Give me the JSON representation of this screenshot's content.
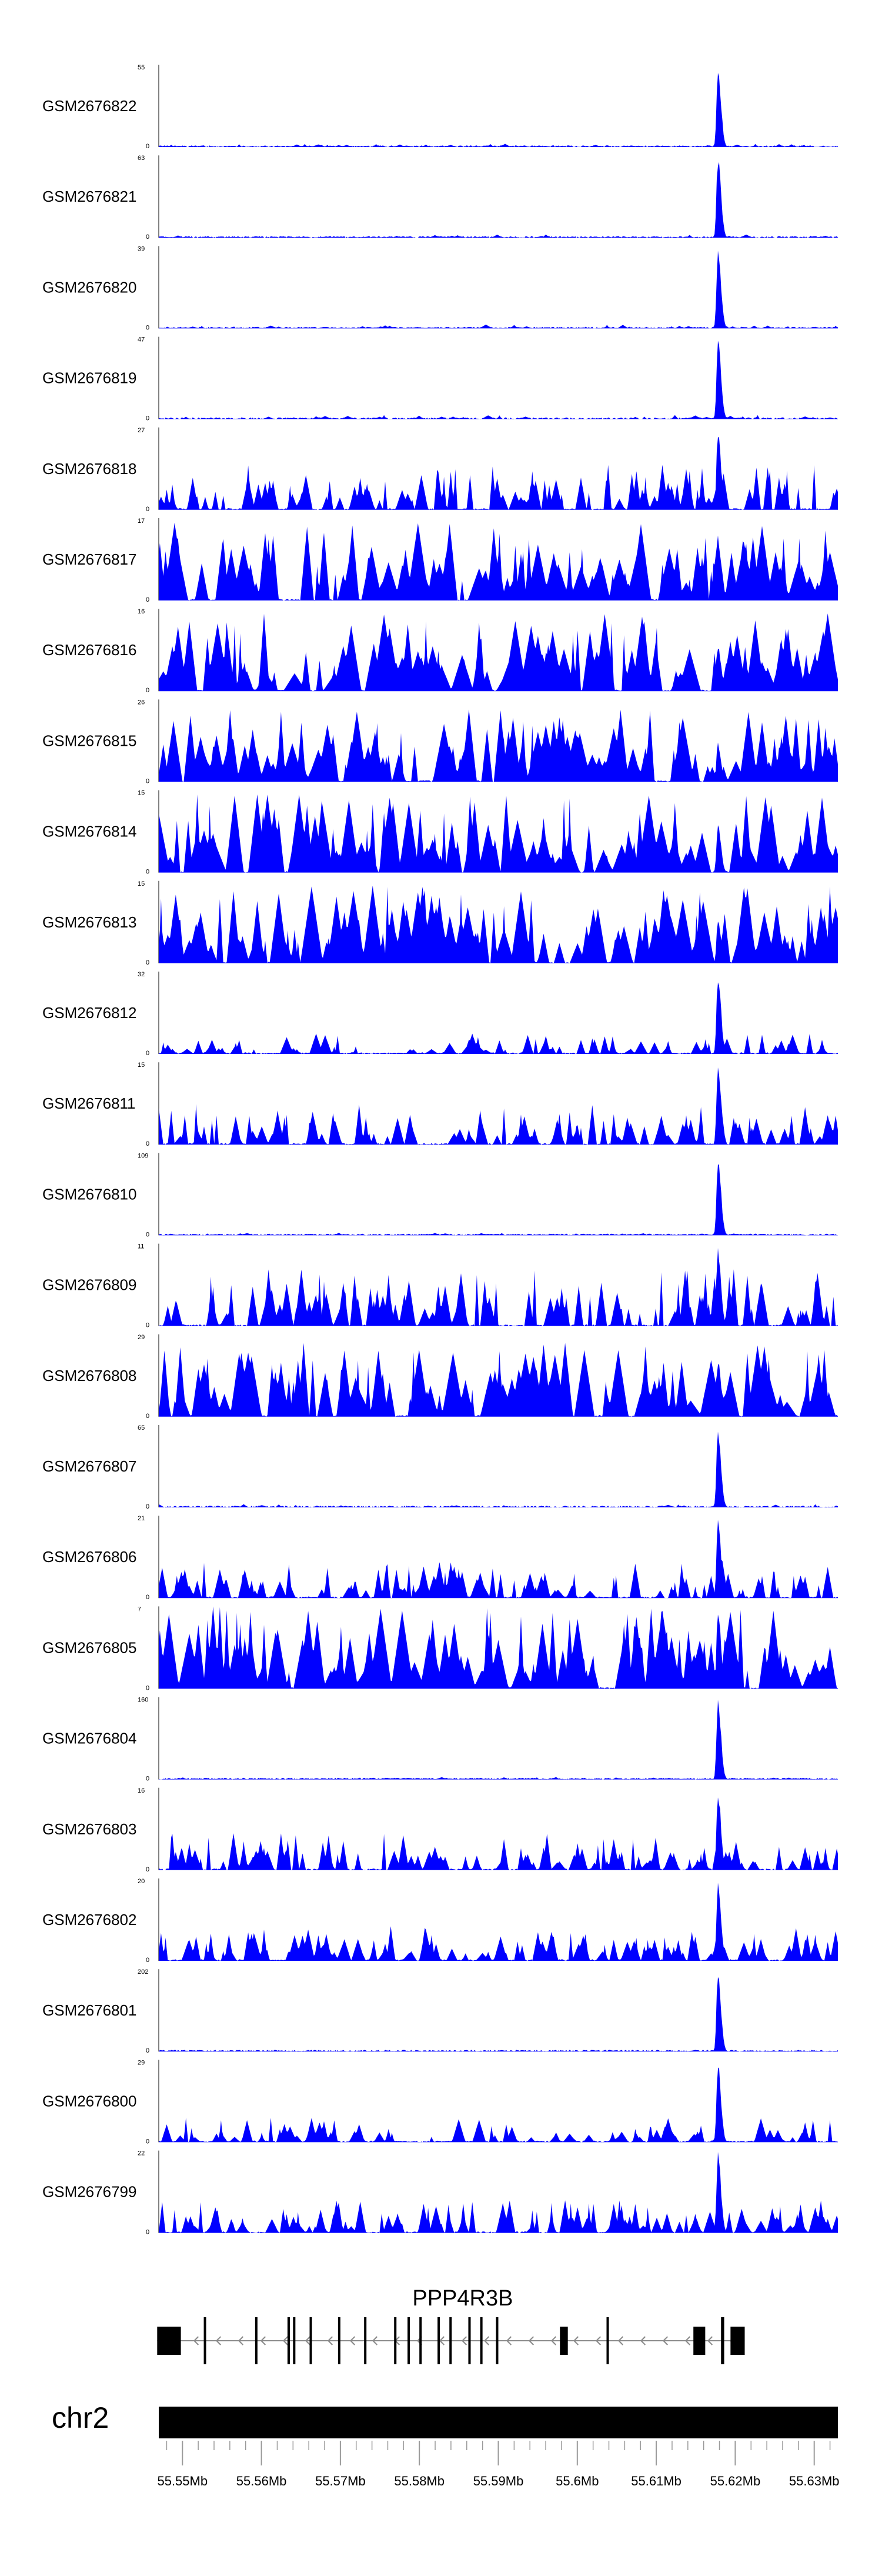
{
  "chart_data": {
    "type": "area",
    "title": "",
    "fill_color": "#0000ff",
    "locus": {
      "chromosome": "chr2",
      "x_range_mb": [
        55.547,
        55.633
      ],
      "ticks_mb": [
        55.55,
        55.56,
        55.57,
        55.58,
        55.59,
        55.6,
        55.61,
        55.62,
        55.63
      ],
      "tick_labels": [
        "55.55Mb",
        "55.56Mb",
        "55.57Mb",
        "55.58Mb",
        "55.59Mb",
        "55.6Mb",
        "55.61Mb",
        "55.62Mb",
        "55.63Mb"
      ]
    },
    "gene": {
      "name": "PPP4R3B",
      "strand": "-",
      "start_mb": 55.5468,
      "end_mb": 55.6212,
      "exons_mb": [
        [
          55.5468,
          55.5498
        ],
        [
          55.5527,
          55.553
        ],
        [
          55.5592,
          55.5595
        ],
        [
          55.5633,
          55.5636
        ],
        [
          55.564,
          55.5643
        ],
        [
          55.5661,
          55.5664
        ],
        [
          55.5697,
          55.57
        ],
        [
          55.573,
          55.5733
        ],
        [
          55.5768,
          55.5771
        ],
        [
          55.5785,
          55.5788
        ],
        [
          55.58,
          55.5803
        ],
        [
          55.5823,
          55.5826
        ],
        [
          55.5838,
          55.5841
        ],
        [
          55.5862,
          55.5865
        ],
        [
          55.5877,
          55.588
        ],
        [
          55.5897,
          55.59
        ],
        [
          55.5978,
          55.5988
        ],
        [
          55.6037,
          55.604
        ],
        [
          55.6147,
          55.6162
        ],
        [
          55.6182,
          55.6186
        ],
        [
          55.6194,
          55.6212
        ]
      ]
    },
    "peak_center_mb": 55.6178,
    "series": [
      {
        "name": "GSM2676822",
        "ymax": 55,
        "ymin": 0,
        "profile": "peak-sparse",
        "peak_rel": 1.0,
        "bg_rel": 0.04,
        "seed": 22
      },
      {
        "name": "GSM2676821",
        "ymax": 63,
        "ymin": 0,
        "profile": "peak-sparse",
        "peak_rel": 1.0,
        "bg_rel": 0.04,
        "seed": 21
      },
      {
        "name": "GSM2676820",
        "ymax": 39,
        "ymin": 0,
        "profile": "peak-sparse",
        "peak_rel": 1.0,
        "bg_rel": 0.05,
        "seed": 20
      },
      {
        "name": "GSM2676819",
        "ymax": 47,
        "ymin": 0,
        "profile": "peak-sparse",
        "peak_rel": 1.0,
        "bg_rel": 0.05,
        "seed": 19
      },
      {
        "name": "GSM2676818",
        "ymax": 27,
        "ymin": 0,
        "profile": "noisy",
        "peak_rel": 1.0,
        "bg_rel": 0.55,
        "seed": 18
      },
      {
        "name": "GSM2676817",
        "ymax": 17,
        "ymin": 0,
        "profile": "dense",
        "peak_rel": 0.55,
        "bg_rel": 0.95,
        "seed": 17
      },
      {
        "name": "GSM2676816",
        "ymax": 16,
        "ymin": 0,
        "profile": "dense",
        "peak_rel": 0.6,
        "bg_rel": 0.95,
        "seed": 16
      },
      {
        "name": "GSM2676815",
        "ymax": 26,
        "ymin": 0,
        "profile": "dense",
        "peak_rel": 0.5,
        "bg_rel": 0.9,
        "seed": 15
      },
      {
        "name": "GSM2676814",
        "ymax": 15,
        "ymin": 0,
        "profile": "dense",
        "peak_rel": 0.6,
        "bg_rel": 0.95,
        "seed": 14
      },
      {
        "name": "GSM2676813",
        "ymax": 15,
        "ymin": 0,
        "profile": "dense",
        "peak_rel": 0.55,
        "bg_rel": 0.95,
        "seed": 13
      },
      {
        "name": "GSM2676812",
        "ymax": 32,
        "ymin": 0,
        "profile": "peak-moderate",
        "peak_rel": 1.0,
        "bg_rel": 0.25,
        "seed": 12
      },
      {
        "name": "GSM2676811",
        "ymax": 15,
        "ymin": 0,
        "profile": "peak-noisy",
        "peak_rel": 1.0,
        "bg_rel": 0.5,
        "seed": 11
      },
      {
        "name": "GSM2676810",
        "ymax": 109,
        "ymin": 0,
        "profile": "peak-sparse",
        "peak_rel": 1.0,
        "bg_rel": 0.03,
        "seed": 10
      },
      {
        "name": "GSM2676809",
        "ymax": 11,
        "ymin": 0,
        "profile": "peak-noisy",
        "peak_rel": 1.0,
        "bg_rel": 0.7,
        "seed": 9
      },
      {
        "name": "GSM2676808",
        "ymax": 29,
        "ymin": 0,
        "profile": "dense",
        "peak_rel": 0.7,
        "bg_rel": 0.9,
        "seed": 8
      },
      {
        "name": "GSM2676807",
        "ymax": 65,
        "ymin": 0,
        "profile": "peak-sparse",
        "peak_rel": 1.0,
        "bg_rel": 0.04,
        "seed": 7
      },
      {
        "name": "GSM2676806",
        "ymax": 21,
        "ymin": 0,
        "profile": "peak-noisy",
        "peak_rel": 1.0,
        "bg_rel": 0.45,
        "seed": 6
      },
      {
        "name": "GSM2676805",
        "ymax": 7,
        "ymin": 0,
        "profile": "dense",
        "peak_rel": 1.0,
        "bg_rel": 1.0,
        "seed": 5
      },
      {
        "name": "GSM2676804",
        "ymax": 160,
        "ymin": 0,
        "profile": "peak-sparse",
        "peak_rel": 1.0,
        "bg_rel": 0.03,
        "seed": 4
      },
      {
        "name": "GSM2676803",
        "ymax": 16,
        "ymin": 0,
        "profile": "peak-noisy",
        "peak_rel": 1.0,
        "bg_rel": 0.45,
        "seed": 3
      },
      {
        "name": "GSM2676802",
        "ymax": 20,
        "ymin": 0,
        "profile": "peak-noisy",
        "peak_rel": 1.0,
        "bg_rel": 0.45,
        "seed": 2
      },
      {
        "name": "GSM2676801",
        "ymax": 202,
        "ymin": 0,
        "profile": "peak-sparse",
        "peak_rel": 1.0,
        "bg_rel": 0.02,
        "seed": 1
      },
      {
        "name": "GSM2676800",
        "ymax": 29,
        "ymin": 0,
        "profile": "peak-moderate",
        "peak_rel": 1.0,
        "bg_rel": 0.3,
        "seed": 100
      },
      {
        "name": "GSM2676799",
        "ymax": 22,
        "ymin": 0,
        "profile": "peak-noisy",
        "peak_rel": 1.0,
        "bg_rel": 0.4,
        "seed": 99
      }
    ]
  }
}
